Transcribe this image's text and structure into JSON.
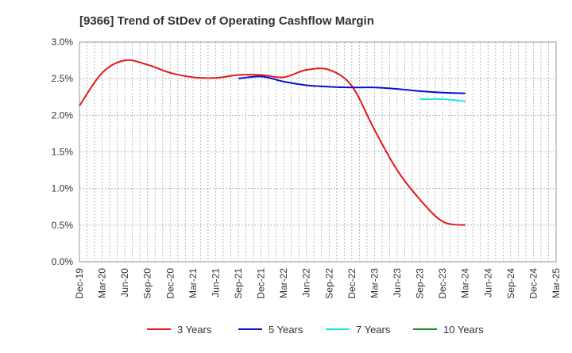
{
  "chart_data": {
    "type": "line",
    "title": "[9366]  Trend of StDev of Operating Cashflow Margin",
    "xlabel": "",
    "ylabel": "",
    "categories": [
      "Dec-19",
      "Mar-20",
      "Jun-20",
      "Sep-20",
      "Dec-20",
      "Mar-21",
      "Jun-21",
      "Sep-21",
      "Dec-21",
      "Mar-22",
      "Jun-22",
      "Sep-22",
      "Dec-22",
      "Mar-23",
      "Jun-23",
      "Sep-23",
      "Dec-23",
      "Mar-24",
      "Jun-24",
      "Sep-24",
      "Dec-24",
      "Mar-25"
    ],
    "y_ticks": [
      "0.0%",
      "0.5%",
      "1.0%",
      "1.5%",
      "2.0%",
      "2.5%",
      "3.0%"
    ],
    "ylim": [
      0,
      3.0
    ],
    "grid": true,
    "legend_position": "bottom",
    "series": [
      {
        "name": "3 Years",
        "color": "#e31a1c",
        "values": [
          2.13,
          2.58,
          2.75,
          2.69,
          2.58,
          2.52,
          2.51,
          2.55,
          2.55,
          2.52,
          2.62,
          2.62,
          2.4,
          1.8,
          1.25,
          0.85,
          0.55,
          0.5,
          null,
          null,
          null,
          null
        ]
      },
      {
        "name": "5 Years",
        "color": "#0a10c8",
        "values": [
          null,
          null,
          null,
          null,
          null,
          null,
          null,
          2.5,
          2.53,
          2.46,
          2.41,
          2.39,
          2.38,
          2.38,
          2.36,
          2.33,
          2.31,
          2.3,
          null,
          null,
          null,
          null
        ]
      },
      {
        "name": "7 Years",
        "color": "#22e0e8",
        "values": [
          null,
          null,
          null,
          null,
          null,
          null,
          null,
          null,
          null,
          null,
          null,
          null,
          null,
          null,
          null,
          2.22,
          2.22,
          2.19,
          null,
          null,
          null,
          null
        ]
      },
      {
        "name": "10 Years",
        "color": "#1f8a1f",
        "values": [
          null,
          null,
          null,
          null,
          null,
          null,
          null,
          null,
          null,
          null,
          null,
          null,
          null,
          null,
          null,
          null,
          null,
          null,
          null,
          null,
          null,
          null
        ]
      }
    ]
  }
}
